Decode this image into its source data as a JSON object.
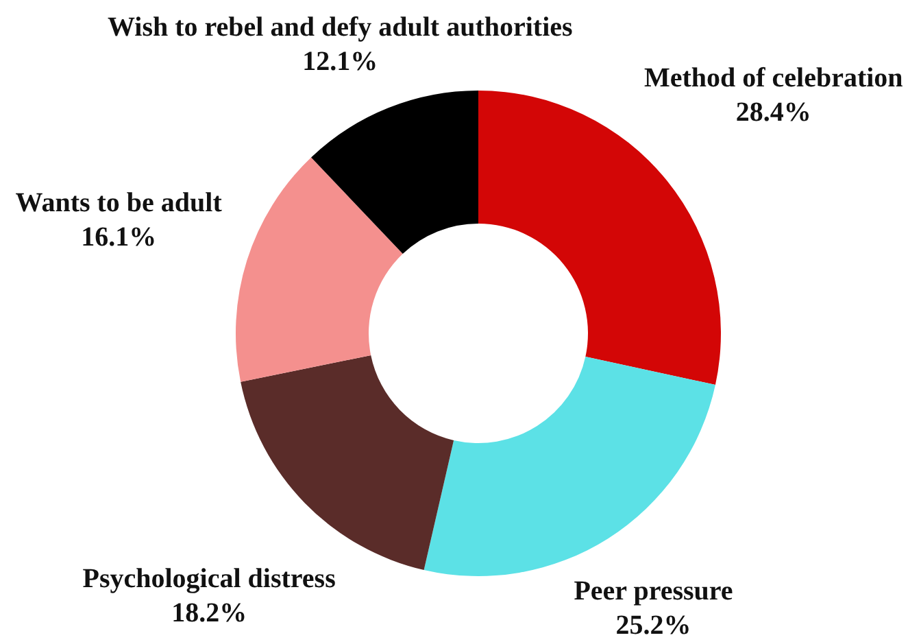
{
  "chart_data": {
    "type": "donut",
    "categories": [
      "Method of celebration",
      "Peer pressure",
      "Psychological distress",
      "Wants to be adult",
      "Wish to rebel and defy adult authorities"
    ],
    "values": [
      28.4,
      25.2,
      18.2,
      16.1,
      12.1
    ],
    "colors": [
      "#d30606",
      "#5ce1e6",
      "#5a2c29",
      "#f4908e",
      "#000000"
    ],
    "value_labels": [
      "28.4%",
      "25.2%",
      "18.2%",
      "16.1%",
      "12.1%"
    ]
  }
}
